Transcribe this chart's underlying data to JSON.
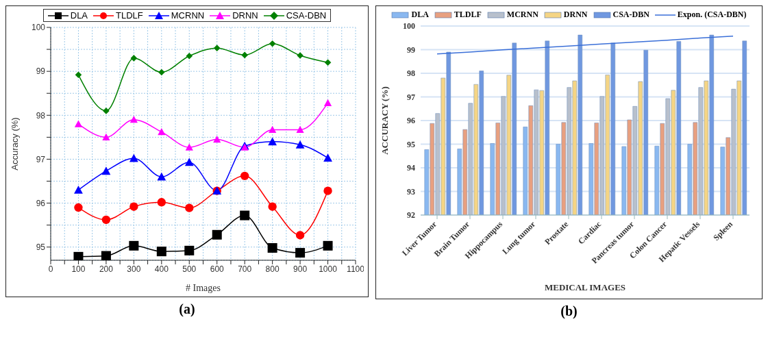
{
  "chart_data": [
    {
      "type": "line",
      "xlabel": "# Images",
      "ylabel": "Accuracy (%)",
      "x": [
        100,
        200,
        300,
        400,
        500,
        600,
        700,
        800,
        900,
        1000
      ],
      "xlim": [
        0,
        1100
      ],
      "xticks": [
        0,
        {
          "value": 50,
          "label": null
        },
        100,
        {
          "value": 150,
          "label": null
        },
        200,
        {
          "value": 250,
          "label": null
        },
        300,
        {
          "value": 350,
          "label": null
        },
        400,
        {
          "value": 450,
          "label": null
        },
        500,
        {
          "value": 550,
          "label": null
        },
        600,
        {
          "value": 650,
          "label": null
        },
        700,
        {
          "value": 750,
          "label": null
        },
        800,
        {
          "value": 850,
          "label": null
        },
        900,
        {
          "value": 950,
          "label": null
        },
        1000,
        {
          "value": 1050,
          "label": null
        },
        1100
      ],
      "ylim": [
        94.7,
        100
      ],
      "yticks": [
        95,
        {
          "value": 95.5,
          "label": null
        },
        96,
        {
          "value": 96.5,
          "label": null
        },
        97,
        {
          "value": 97.5,
          "label": null
        },
        98,
        {
          "value": 98.5,
          "label": null
        },
        99,
        {
          "value": 99.5,
          "label": null
        },
        100
      ],
      "grid": true,
      "legend": "top",
      "annotations": [
        "(a)"
      ],
      "series": [
        {
          "name": "DLA",
          "color": "#000000",
          "marker": "square",
          "values": [
            94.78,
            94.8,
            95.03,
            94.9,
            94.92,
            95.28,
            95.72,
            94.98,
            94.87,
            95.03
          ]
        },
        {
          "name": "TLDLF",
          "color": "#ff0000",
          "marker": "circle",
          "values": [
            95.9,
            95.62,
            95.92,
            96.02,
            95.89,
            96.28,
            96.62,
            95.92,
            95.27,
            96.28
          ]
        },
        {
          "name": "MCRNN",
          "color": "#0000ff",
          "marker": "triangle",
          "values": [
            96.3,
            96.73,
            97.02,
            96.6,
            96.93,
            96.28,
            97.3,
            97.4,
            97.33,
            97.03
          ]
        },
        {
          "name": "DRNN",
          "color": "#ff00ff",
          "marker": "triangle",
          "values": [
            97.8,
            97.5,
            97.9,
            97.62,
            97.27,
            97.45,
            97.27,
            97.67,
            97.67,
            98.28
          ]
        },
        {
          "name": "CSA-DBN",
          "color": "#008000",
          "marker": "diamond",
          "values": [
            98.92,
            98.1,
            99.3,
            98.98,
            99.35,
            99.53,
            99.37,
            99.63,
            99.36,
            99.2
          ]
        }
      ]
    },
    {
      "type": "bar",
      "xlabel": "MEDICAL IMAGES",
      "ylabel": "ACCURACY (%)",
      "categories": [
        "Liver Tumor",
        "Brain Tumor",
        "Hippocampus",
        "Lung tumor",
        "Prostate",
        "Cardiac",
        "Pancreas tumor",
        "Colon Cancer",
        "Hepatic Vessels",
        "Spleen"
      ],
      "ylim": [
        92,
        100
      ],
      "yticks": [
        92,
        93,
        94,
        95,
        96,
        97,
        98,
        99,
        100
      ],
      "grid": "y",
      "legend": "top",
      "annotations": [
        "(b)"
      ],
      "series": [
        {
          "name": "DLA",
          "color": "#8ab8f0",
          "values": [
            94.77,
            94.8,
            95.03,
            95.73,
            95.0,
            95.03,
            94.9,
            94.92,
            95.0,
            94.88
          ]
        },
        {
          "name": "TLDLF",
          "color": "#e8a080",
          "values": [
            95.88,
            95.62,
            95.9,
            96.63,
            95.92,
            95.9,
            96.03,
            95.88,
            95.92,
            95.28
          ]
        },
        {
          "name": "MCRNN",
          "color": "#b8c0cc",
          "values": [
            96.3,
            96.73,
            97.02,
            97.3,
            97.4,
            97.02,
            96.6,
            96.93,
            97.4,
            97.33
          ]
        },
        {
          "name": "DRNN",
          "color": "#f5d585",
          "values": [
            97.8,
            97.53,
            97.92,
            97.27,
            97.68,
            97.93,
            97.65,
            97.28,
            97.68,
            97.68
          ]
        },
        {
          "name": "CSA-DBN",
          "color": "#7098e0",
          "values": [
            98.9,
            98.1,
            99.28,
            99.37,
            99.62,
            99.28,
            98.98,
            99.35,
            99.62,
            99.37
          ]
        },
        {
          "name": "Expon. (CSA-DBN)",
          "type": "line",
          "color": "#3a6fd8",
          "values": [
            98.82,
            98.9,
            98.99,
            99.07,
            99.15,
            99.24,
            99.32,
            99.4,
            99.49,
            99.57
          ]
        }
      ]
    }
  ]
}
